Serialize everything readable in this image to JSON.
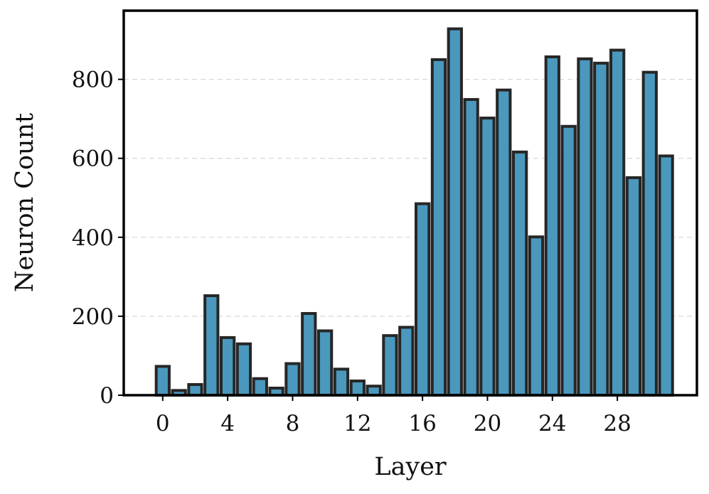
{
  "chart_data": {
    "type": "bar",
    "title": "",
    "xlabel": "Layer",
    "ylabel": "Neuron Count",
    "x": [
      0,
      1,
      2,
      3,
      4,
      5,
      6,
      7,
      8,
      9,
      10,
      11,
      12,
      13,
      14,
      15,
      16,
      17,
      18,
      19,
      20,
      21,
      22,
      23,
      24,
      25,
      26,
      27,
      28,
      29,
      30,
      31
    ],
    "values": [
      73,
      12,
      27,
      252,
      146,
      130,
      42,
      18,
      80,
      207,
      163,
      66,
      36,
      23,
      151,
      172,
      485,
      850,
      928,
      749,
      702,
      773,
      616,
      401,
      857,
      681,
      852,
      841,
      874,
      551,
      818,
      606
    ],
    "xticks": [
      0,
      4,
      8,
      12,
      16,
      20,
      24,
      28
    ],
    "yticks": [
      0,
      200,
      400,
      600,
      800
    ],
    "xlim": [
      -2.4,
      32.9
    ],
    "ylim": [
      0,
      974
    ],
    "grid": "horizontal dashed",
    "colors": {
      "bar_fill": "#4a98bd",
      "bar_edge": "#262626"
    }
  }
}
